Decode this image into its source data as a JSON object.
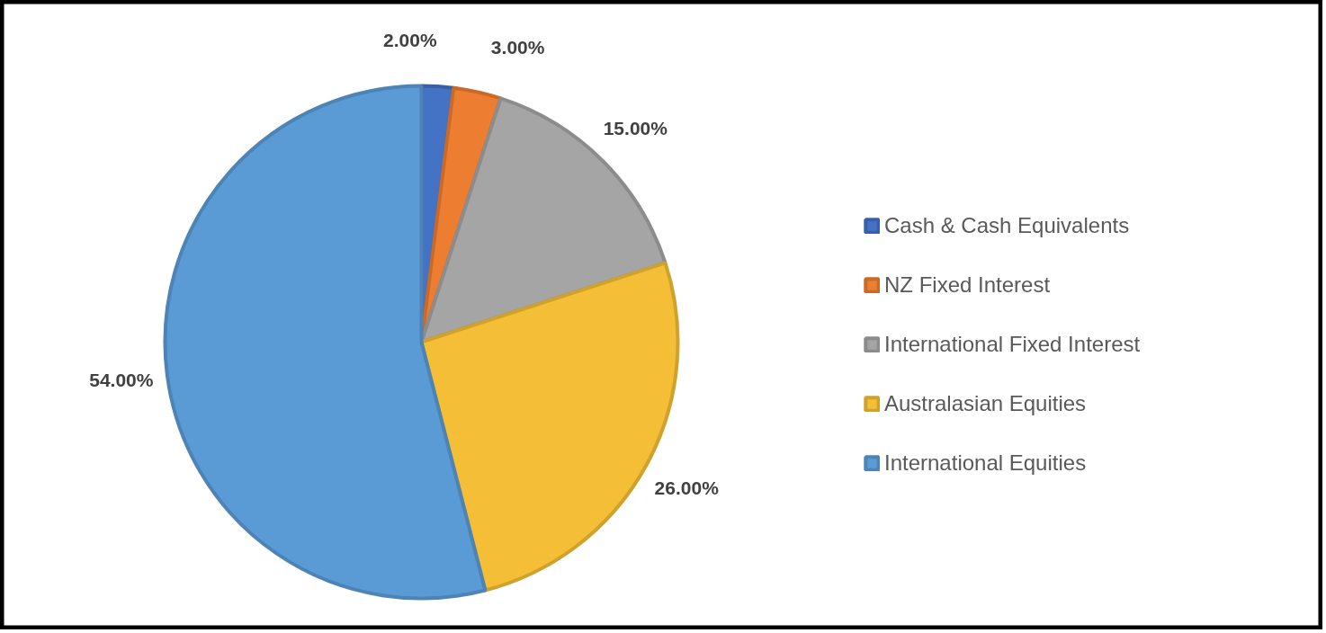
{
  "chart_data": {
    "type": "pie",
    "categories": [
      "Cash & Cash Equivalents",
      "NZ Fixed Interest",
      "International Fixed Interest",
      "Australasian Equities",
      "International Equities"
    ],
    "values": [
      2,
      3,
      15,
      26,
      54
    ],
    "colors": [
      "#4472c4",
      "#ed7d31",
      "#a5a5a5",
      "#f4bf37",
      "#5b9bd5"
    ],
    "value_labels": [
      "2.00%",
      "3.00%",
      "15.00%",
      "26.00%",
      "54.00%"
    ],
    "legend": "right"
  }
}
